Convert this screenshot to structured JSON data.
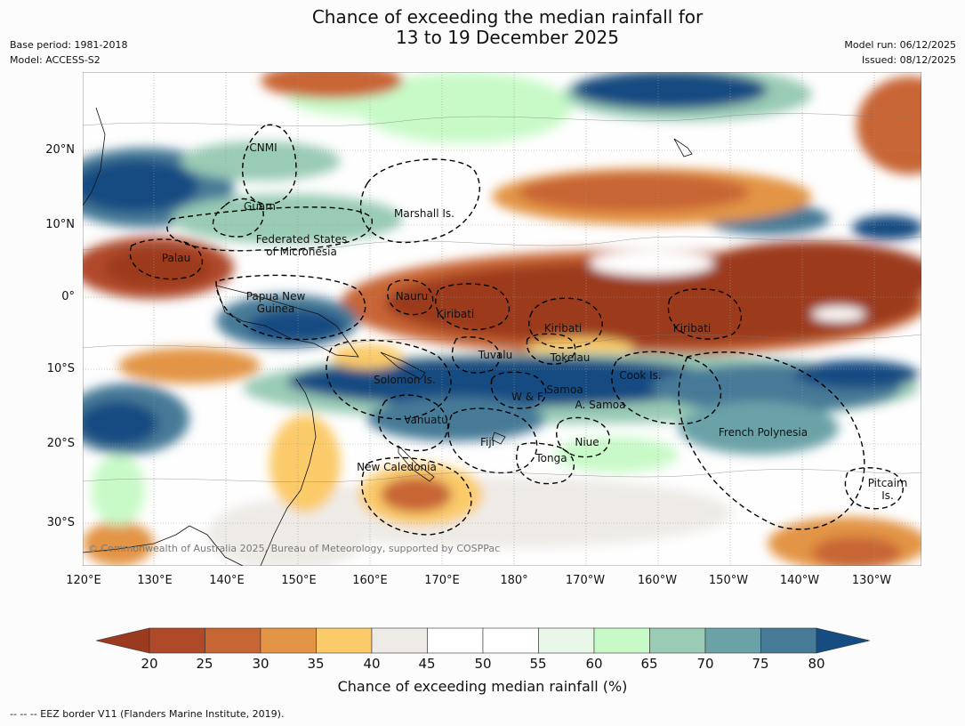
{
  "title_line1": "Chance of exceeding the median rainfall for",
  "title_line2": "13 to 19 December 2025",
  "meta": {
    "base_period": "Base period: 1981-2018",
    "model": "Model: ACCESS-S2",
    "model_run": "Model run: 06/12/2025",
    "issued": "Issued: 08/12/2025"
  },
  "map": {
    "lat_labels": [
      "20°N",
      "10°N",
      "0°",
      "10°S",
      "20°S",
      "30°S"
    ],
    "lon_labels": [
      "120°E",
      "130°E",
      "140°E",
      "150°E",
      "160°E",
      "170°E",
      "180°",
      "170°W",
      "160°W",
      "150°W",
      "140°W",
      "130°W"
    ],
    "places": [
      "CNMI",
      "Guam",
      "Marshall Is.",
      "Federated States\nof Micronesia",
      "Palau",
      "Papua New\nGuinea",
      "Nauru",
      "Kiribati",
      "Kiribati",
      "Kiribati",
      "Tuvalu",
      "Tokelau",
      "Cook Is.",
      "Solomon Is.",
      "Samoa",
      "W & F",
      "A. Samoa",
      "Vanuatu",
      "Fiji",
      "Niue",
      "French Polynesia",
      "Tonga",
      "New Caledonia",
      "Pitcairn\nIs."
    ],
    "copyright": "© Commonwealth of Australia 2025, Bureau of Meteorology, supported by COSPPac"
  },
  "colorbar": {
    "ticks": [
      "20",
      "25",
      "30",
      "35",
      "40",
      "45",
      "50",
      "55",
      "60",
      "65",
      "70",
      "75",
      "80"
    ],
    "colors": [
      "#9c3a1f",
      "#b0482a",
      "#c86534",
      "#e39445",
      "#fbcb6b",
      "#eeebe7",
      "#ffffff",
      "#ffffff",
      "#e9f7e8",
      "#c8fac7",
      "#99cbb5",
      "#6ba2a8",
      "#477a97",
      "#154c82"
    ],
    "label": "Chance of exceeding median rainfall (%)"
  },
  "footnote": "--  --  -- EEZ border V11 (Flanders Marine Institute, 2019)."
}
